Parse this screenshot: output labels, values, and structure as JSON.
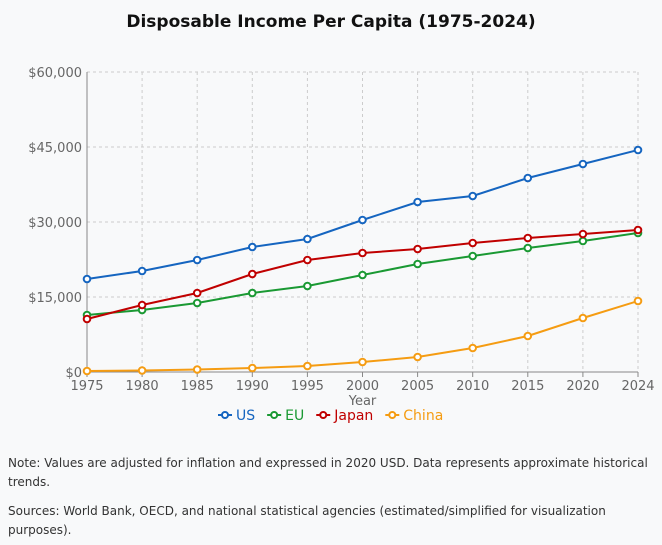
{
  "chart_data": {
    "type": "line",
    "title": "Disposable Income Per Capita (1975-2024)",
    "xlabel": "Year",
    "ylabel": "",
    "categories": [
      "1975",
      "1980",
      "1985",
      "1990",
      "1995",
      "2000",
      "2005",
      "2010",
      "2015",
      "2020",
      "2024"
    ],
    "ylim": [
      0,
      60000
    ],
    "yticks": [
      0,
      15000,
      30000,
      45000,
      60000
    ],
    "ytick_labels": [
      "$0",
      "$15,000",
      "$30,000",
      "$45,000",
      "$60,000"
    ],
    "grid": true,
    "legend_position": "bottom",
    "series": [
      {
        "name": "US",
        "color": "#1565c0",
        "values": [
          18600,
          20200,
          22400,
          25000,
          26600,
          30400,
          34000,
          35200,
          38800,
          41600,
          44400
        ]
      },
      {
        "name": "EU",
        "color": "#1a9933",
        "values": [
          11400,
          12400,
          13800,
          15800,
          17200,
          19400,
          21600,
          23200,
          24800,
          26200,
          27800
        ]
      },
      {
        "name": "Japan",
        "color": "#c00000",
        "values": [
          10600,
          13400,
          15800,
          19600,
          22400,
          23800,
          24600,
          25800,
          26800,
          27600,
          28400
        ]
      },
      {
        "name": "China",
        "color": "#f59c12",
        "values": [
          200,
          300,
          500,
          800,
          1200,
          2000,
          3000,
          4800,
          7200,
          10800,
          14200
        ]
      }
    ]
  },
  "notes": {
    "note": "Note: Values are adjusted for inflation and expressed in 2020 USD. Data represents approximate historical trends.",
    "sources": "Sources: World Bank, OECD, and national statistical agencies (estimated/simplified for visualization purposes)."
  }
}
